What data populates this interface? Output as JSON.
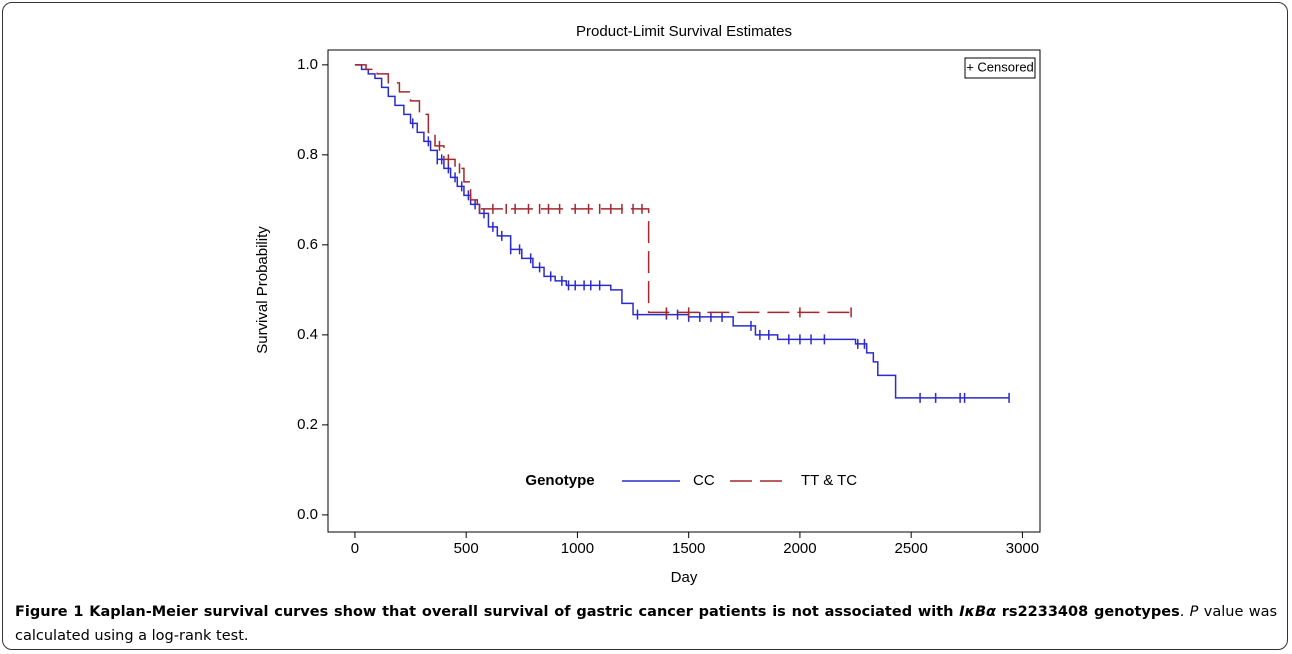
{
  "chart_data": {
    "type": "step",
    "title": "Product-Limit Survival Estimates",
    "xlabel": "Day",
    "ylabel": "Survival Probability",
    "legend_title": "Genotype",
    "censor_label": "+ Censored",
    "xlim": [
      -121,
      3079
    ],
    "xticks": [
      0,
      500,
      1000,
      1500,
      2000,
      2500,
      3000
    ],
    "ylim": [
      -0.038,
      1.033
    ],
    "yticks": [
      {
        "value": 0,
        "label": "0.0"
      },
      0.2,
      0.4,
      0.6,
      0.8,
      {
        "value": 1,
        "label": "1.0"
      }
    ],
    "series": [
      {
        "name": "CC",
        "color": "#2b2bcc",
        "dash": false,
        "x": [
          0,
          30,
          60,
          90,
          120,
          150,
          180,
          220,
          250,
          280,
          310,
          340,
          370,
          400,
          430,
          460,
          490,
          520,
          560,
          600,
          640,
          700,
          750,
          800,
          850,
          900,
          950,
          1150,
          1200,
          1250,
          1500,
          1700,
          1800,
          1900,
          2250,
          2300,
          2330,
          2350,
          2430
        ],
        "values": [
          1.0,
          0.99,
          0.98,
          0.97,
          0.95,
          0.93,
          0.91,
          0.89,
          0.87,
          0.85,
          0.83,
          0.81,
          0.79,
          0.77,
          0.75,
          0.73,
          0.71,
          0.69,
          0.67,
          0.64,
          0.62,
          0.59,
          0.57,
          0.55,
          0.53,
          0.52,
          0.51,
          0.5,
          0.47,
          0.445,
          0.44,
          0.42,
          0.4,
          0.39,
          0.38,
          0.36,
          0.34,
          0.31,
          0.26
        ],
        "censored": [
          260,
          330,
          370,
          390,
          420,
          450,
          480,
          510,
          540,
          580,
          620,
          660,
          700,
          740,
          790,
          830,
          880,
          930,
          960,
          990,
          1030,
          1060,
          1100,
          1270,
          1400,
          1450,
          1500,
          1550,
          1600,
          1650,
          1780,
          1820,
          1860,
          1950,
          2000,
          2050,
          2110,
          2260,
          2290,
          2540,
          2610,
          2720,
          2740,
          2940
        ]
      },
      {
        "name": "TT & TC",
        "color": "#a3282e",
        "dash": true,
        "x": [
          0,
          50,
          100,
          150,
          200,
          250,
          290,
          330,
          360,
          400,
          450,
          490,
          520,
          550,
          1320
        ],
        "values": [
          1.0,
          0.99,
          0.98,
          0.96,
          0.94,
          0.92,
          0.89,
          0.85,
          0.82,
          0.79,
          0.77,
          0.74,
          0.7,
          0.68,
          0.45
        ],
        "censored": [
          380,
          420,
          470,
          560,
          620,
          680,
          720,
          780,
          830,
          870,
          920,
          990,
          1050,
          1100,
          1150,
          1200,
          1250,
          1290,
          1400,
          1500,
          2000,
          2230
        ]
      }
    ]
  },
  "caption": {
    "label": "Figure 1",
    "text1": " Kaplan-Meier survival curves show that overall survival of gastric cancer patients is not associated with ",
    "gene": "IκBα",
    "text2": " rs2233408 genotypes",
    "text3": ". ",
    "p": "P",
    "text4": " value was calculated using a log-rank test."
  }
}
